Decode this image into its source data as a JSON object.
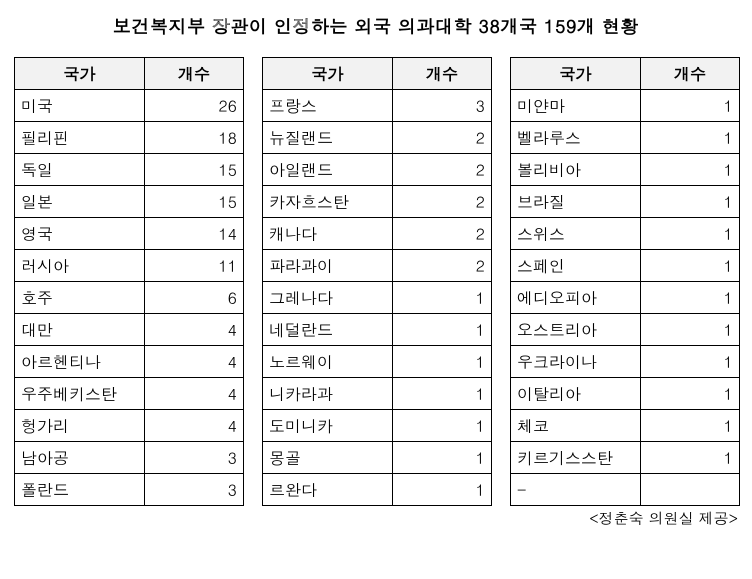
{
  "title": "보건복지부 장관이 인정하는 외국 의과대학 38개국 159개 현황",
  "headers": {
    "country": "국가",
    "count": "개수"
  },
  "tables": [
    {
      "rows": [
        {
          "country": "미국",
          "count": "26"
        },
        {
          "country": "필리핀",
          "count": "18"
        },
        {
          "country": "독일",
          "count": "15"
        },
        {
          "country": "일본",
          "count": "15"
        },
        {
          "country": "영국",
          "count": "14"
        },
        {
          "country": "러시아",
          "count": "11"
        },
        {
          "country": "호주",
          "count": "6"
        },
        {
          "country": "대만",
          "count": "4"
        },
        {
          "country": "아르헨티나",
          "count": "4"
        },
        {
          "country": "우주베키스탄",
          "count": "4"
        },
        {
          "country": "헝가리",
          "count": "4"
        },
        {
          "country": "남아공",
          "count": "3"
        },
        {
          "country": "폴란드",
          "count": "3"
        }
      ]
    },
    {
      "rows": [
        {
          "country": "프랑스",
          "count": "3"
        },
        {
          "country": "뉴질랜드",
          "count": "2"
        },
        {
          "country": "아일랜드",
          "count": "2"
        },
        {
          "country": "카자흐스탄",
          "count": "2"
        },
        {
          "country": "캐나다",
          "count": "2"
        },
        {
          "country": "파라과이",
          "count": "2"
        },
        {
          "country": "그레나다",
          "count": "1"
        },
        {
          "country": "네덜란드",
          "count": "1"
        },
        {
          "country": "노르웨이",
          "count": "1"
        },
        {
          "country": "니카라과",
          "count": "1"
        },
        {
          "country": "도미니카",
          "count": "1"
        },
        {
          "country": "몽골",
          "count": "1"
        },
        {
          "country": "르완다",
          "count": "1"
        }
      ]
    },
    {
      "rows": [
        {
          "country": "미얀마",
          "count": "1"
        },
        {
          "country": "벨라루스",
          "count": "1"
        },
        {
          "country": "볼리비아",
          "count": "1"
        },
        {
          "country": "브라질",
          "count": "1"
        },
        {
          "country": "스위스",
          "count": "1"
        },
        {
          "country": "스페인",
          "count": "1"
        },
        {
          "country": "에디오피아",
          "count": "1"
        },
        {
          "country": "오스트리아",
          "count": "1"
        },
        {
          "country": "우크라이나",
          "count": "1"
        },
        {
          "country": "이탈리아",
          "count": "1"
        },
        {
          "country": "체코",
          "count": "1"
        },
        {
          "country": "키르기스스탄",
          "count": "1"
        },
        {
          "country": "-",
          "count": ""
        }
      ]
    }
  ],
  "credit": "<정춘숙 의원실 제공>",
  "style": {
    "header_bg": "#f2f2f2",
    "border_color": "#000000",
    "font_family": "Malgun Gothic",
    "title_fontsize_pt": 14,
    "cell_fontsize_pt": 12
  }
}
